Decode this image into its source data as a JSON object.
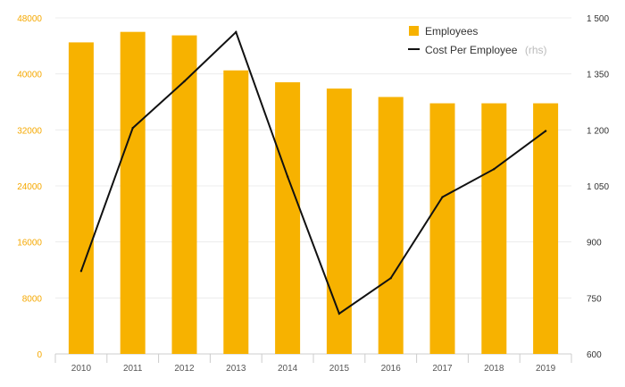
{
  "chart_data": {
    "type": "bar",
    "categories": [
      "2010",
      "2011",
      "2012",
      "2013",
      "2014",
      "2015",
      "2016",
      "2017",
      "2018",
      "2019"
    ],
    "series": [
      {
        "name": "Employees",
        "type": "bar",
        "axis": "left",
        "color": "#f7b200",
        "values": [
          44500,
          46000,
          45500,
          40500,
          38800,
          37900,
          36700,
          35800,
          35800,
          35800
        ]
      },
      {
        "name": "Cost Per Employee",
        "name_suffix": "(rhs)",
        "type": "line",
        "axis": "right",
        "color": "#111111",
        "values": [
          822,
          1205,
          1330,
          1462,
          1075,
          708,
          803,
          1020,
          1095,
          1197
        ]
      }
    ],
    "y_left": {
      "ylim": [
        0,
        48000
      ],
      "ticks": [
        "0",
        "8000",
        "16000",
        "24000",
        "32000",
        "40000",
        "48000"
      ],
      "tick_color": "#f5a800"
    },
    "y_right": {
      "ylim": [
        600,
        1500
      ],
      "ticks": [
        "600",
        "750",
        "900",
        "1 050",
        "1 200",
        "1 350",
        "1 500"
      ]
    },
    "grid": true,
    "legend": "top-right"
  }
}
